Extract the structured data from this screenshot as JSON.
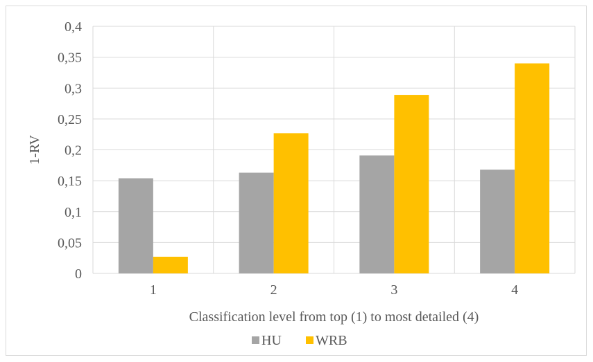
{
  "chart_data": {
    "type": "bar",
    "title": "",
    "xlabel": "Classification level from top (1) to most detailed (4)",
    "ylabel": "1-RV",
    "categories": [
      "1",
      "2",
      "3",
      "4"
    ],
    "series": [
      {
        "name": "HU",
        "values": [
          0.154,
          0.163,
          0.191,
          0.168
        ],
        "color": "#a5a5a5"
      },
      {
        "name": "WRB",
        "values": [
          0.027,
          0.227,
          0.289,
          0.34
        ],
        "color": "#ffc000"
      }
    ],
    "ylim": [
      0,
      0.4
    ],
    "yticks": [
      "0",
      "0,05",
      "0,1",
      "0,15",
      "0,2",
      "0,25",
      "0,3",
      "0,35",
      "0,4"
    ],
    "grid": true,
    "legend_position": "bottom",
    "gridline_color": "#d9d9d9"
  }
}
